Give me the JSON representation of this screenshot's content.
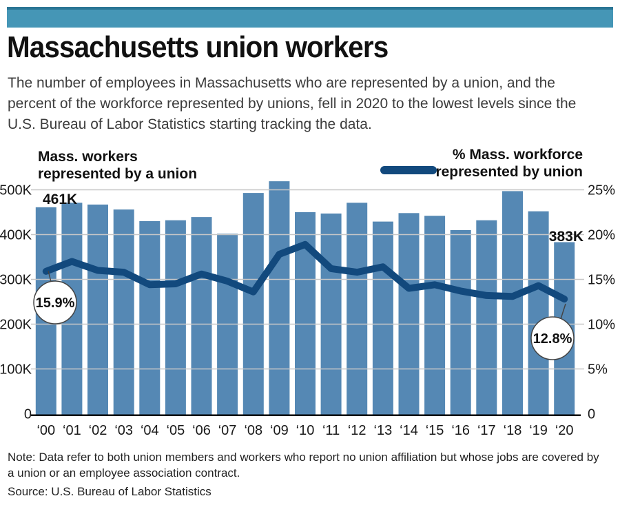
{
  "header": {
    "title": "Massachusetts union workers",
    "subtitle": "The number of employees in Massachusetts who are represented by a union, and the percent of the workforce represented by unions, fell in 2020 to the lowest levels since the U.S. Bureau of Labor Statistics starting tracking the data."
  },
  "legend_left": {
    "line1": "Mass. workers",
    "line2": "represented by a union"
  },
  "legend_right": {
    "line1": "% Mass. workforce",
    "line2": "represented by union"
  },
  "annotations": {
    "first_bar_label": "461K",
    "last_bar_label": "383K",
    "first_line_label": "15.9%",
    "last_line_label": "12.8%"
  },
  "footer": {
    "note": "Note: Data refer to both union members and workers who report no union affiliation but whose jobs are covered by a union or an employee association contract.",
    "source": "Source: U.S. Bureau of Labor Statistics"
  },
  "colors": {
    "banner_fill": "#4596b6",
    "banner_edge": "#2b7695",
    "bar": "#5588b4",
    "line": "#12497d",
    "grid": "#c7c7c7",
    "axis": "#000000"
  },
  "chart_data": {
    "type": "bar",
    "subtype": "bar-line combo, dual axis",
    "title": "Massachusetts union workers",
    "categories": [
      "‘00",
      "‘01",
      "‘02",
      "‘03",
      "‘04",
      "‘05",
      "‘06",
      "‘07",
      "‘08",
      "‘09",
      "‘10",
      "‘11",
      "‘12",
      "‘13",
      "‘14",
      "‘15",
      "‘16",
      "‘17",
      "‘18",
      "‘19",
      "‘20"
    ],
    "series": [
      {
        "name": "Mass. workers represented by a union",
        "type": "bar",
        "axis": "left",
        "unit": "thousands of workers",
        "values": [
          461,
          471,
          467,
          456,
          430,
          432,
          439,
          402,
          493,
          519,
          450,
          447,
          471,
          429,
          448,
          442,
          410,
          432,
          497,
          452,
          383
        ]
      },
      {
        "name": "% Mass. workforce represented by union",
        "type": "line",
        "axis": "right",
        "unit": "percent",
        "values": [
          15.9,
          17.0,
          16.0,
          15.8,
          14.4,
          14.5,
          15.6,
          14.8,
          13.6,
          17.8,
          18.9,
          16.2,
          15.8,
          16.4,
          14.0,
          14.4,
          13.7,
          13.2,
          13.1,
          14.3,
          12.8
        ]
      }
    ],
    "left_axis": {
      "range_thousands": [
        0,
        500
      ],
      "ticks": [
        {
          "label": "0",
          "value": 0
        },
        {
          "label": "100K",
          "value": 100
        },
        {
          "label": "200K",
          "value": 200
        },
        {
          "label": "300K",
          "value": 300
        },
        {
          "label": "400K",
          "value": 400
        },
        {
          "label": "500K",
          "value": 500
        }
      ]
    },
    "right_axis": {
      "range_percent": [
        0,
        25
      ],
      "ticks": [
        {
          "label": "0",
          "value": 0
        },
        {
          "label": "5%",
          "value": 5
        },
        {
          "label": "10%",
          "value": 10
        },
        {
          "label": "15%",
          "value": 15
        },
        {
          "label": "20%",
          "value": 20
        },
        {
          "label": "25%",
          "value": 25
        }
      ]
    },
    "grid": "horizontal gridlines at each left-axis tick, drawn over bars",
    "legend_position": "top",
    "annotated_points": [
      {
        "category": "‘00",
        "series": "bar",
        "label": "461K"
      },
      {
        "category": "‘20",
        "series": "bar",
        "label": "383K"
      },
      {
        "category": "‘00",
        "series": "line",
        "label": "15.9%"
      },
      {
        "category": "‘20",
        "series": "line",
        "label": "12.8%"
      }
    ]
  }
}
